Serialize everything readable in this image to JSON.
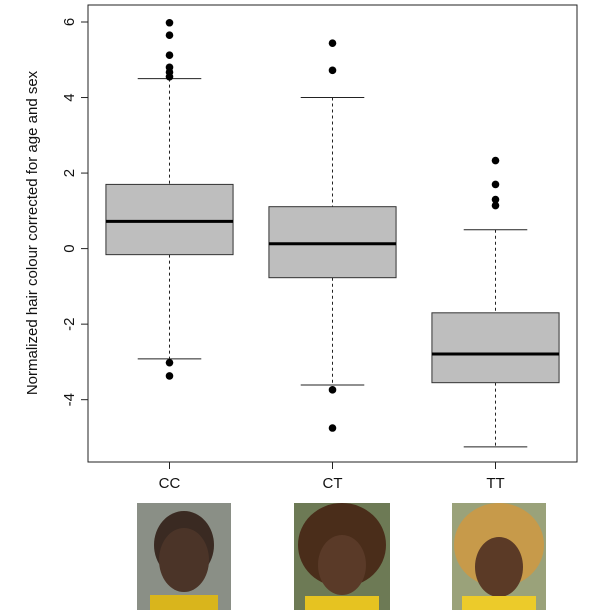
{
  "chart_data": {
    "type": "box",
    "y_label": "Normalized hair colour corrected for age and sex",
    "categories": [
      "CC",
      "CT",
      "TT"
    ],
    "color": "#bebebe",
    "boxes": [
      {
        "whisker_low": -2.92,
        "q1": -0.16,
        "median": 0.72,
        "q3": 1.7,
        "whisker_high": 4.5,
        "outliers": [
          5.98,
          5.65,
          5.12,
          4.8,
          4.67,
          4.55,
          -3.02,
          -3.37
        ]
      },
      {
        "whisker_low": -3.61,
        "q1": -0.77,
        "median": 0.13,
        "q3": 1.11,
        "whisker_high": 4.0,
        "outliers": [
          5.44,
          4.72,
          -3.74,
          -4.75
        ]
      },
      {
        "whisker_low": -5.25,
        "q1": -3.55,
        "median": -2.79,
        "q3": -1.7,
        "whisker_high": 0.5,
        "outliers": [
          2.33,
          1.7,
          1.3,
          1.14
        ]
      }
    ],
    "ylim": [
      -5.65,
      6.45
    ],
    "yticks": [
      -4,
      -2,
      0,
      2,
      4,
      6
    ]
  }
}
